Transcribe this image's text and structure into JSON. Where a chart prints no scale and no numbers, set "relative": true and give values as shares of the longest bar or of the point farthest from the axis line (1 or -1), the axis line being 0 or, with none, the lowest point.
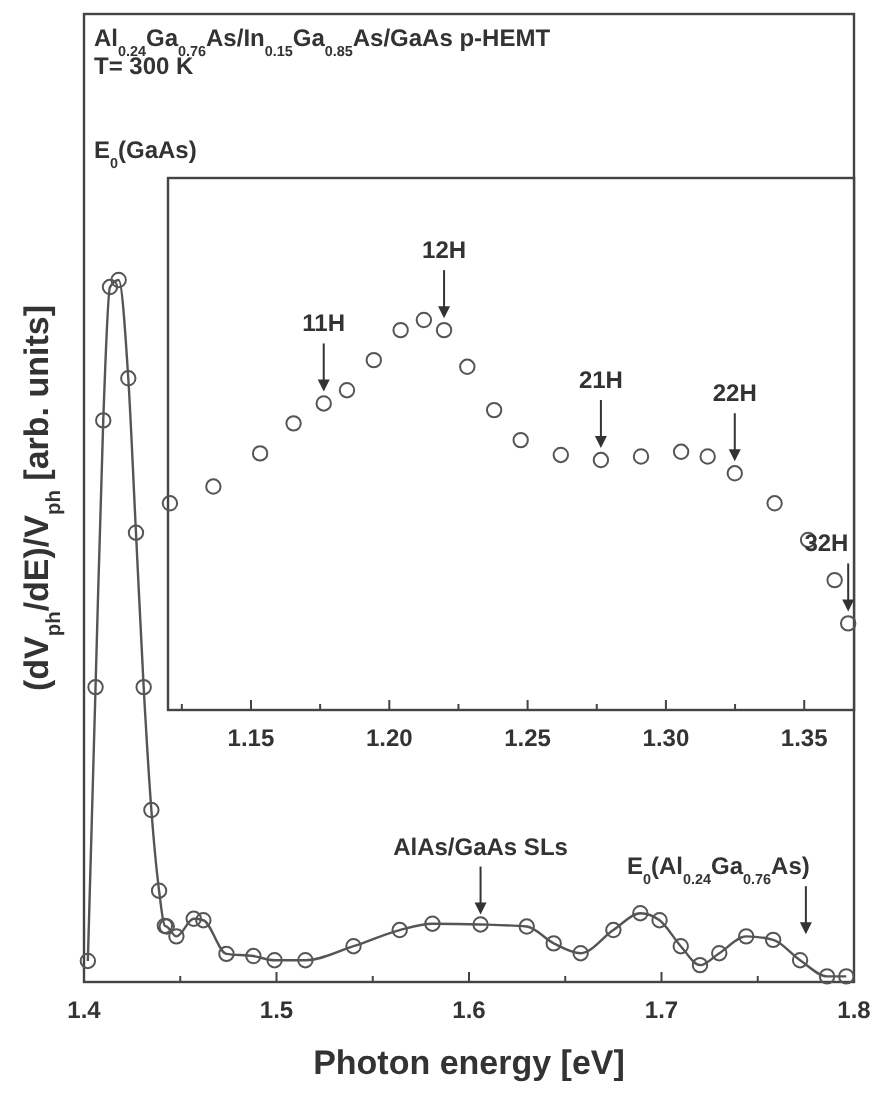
{
  "chart_data": [
    {
      "type": "line",
      "title": "Al$_{0.24}$Ga$_{0.76}$As/In$_{0.15}$Ga$_{0.85}$As/GaAs p-HEMT",
      "subtitle": "T= 300 K",
      "xlabel": "Photon energy [eV]",
      "ylabel": "(dV$_{ph}$/dE)/V$_{ph}$ [arb. units]",
      "relative": true,
      "marker": "circle",
      "line_style": "solid",
      "x": [
        1.402,
        1.406,
        1.41,
        1.4135,
        1.418,
        1.423,
        1.427,
        1.431,
        1.435,
        1.439,
        1.442,
        1.443,
        1.448,
        1.457,
        1.462,
        1.474,
        1.488,
        1.499,
        1.515,
        1.54,
        1.564,
        1.581,
        1.606,
        1.63,
        1.644,
        1.658,
        1.675,
        1.689,
        1.699,
        1.71,
        1.72,
        1.73,
        1.744,
        1.758,
        1.772,
        1.786,
        1.796
      ],
      "values": [
        0.03,
        0.42,
        0.8,
        0.99,
        1.0,
        0.86,
        0.64,
        0.42,
        0.245,
        0.13,
        0.08,
        0.079,
        0.065,
        0.09,
        0.088,
        0.04,
        0.037,
        0.031,
        0.031,
        0.051,
        0.074,
        0.083,
        0.082,
        0.079,
        0.055,
        0.041,
        0.074,
        0.098,
        0.088,
        0.051,
        0.024,
        0.041,
        0.065,
        0.06,
        0.031,
        0.008,
        0.008
      ],
      "color": "#555555",
      "xlim": [
        1.4,
        1.8
      ],
      "xticks": [
        1.4,
        {
          "value": 1.45,
          "label": null
        },
        1.5,
        {
          "value": 1.55,
          "label": null
        },
        1.6,
        {
          "value": 1.65,
          "label": null
        },
        1.7,
        {
          "value": 1.75,
          "label": null
        },
        1.8
      ],
      "annotations": [
        "E$_{0}$(GaAs)",
        {
          "text": "AlAs/GaAs SLs",
          "x": 1.606,
          "y": 0.079
        },
        {
          "text": "E$_{0}$(Al$_{0.24}$Ga$_{0.76}$As)",
          "x": 1.775,
          "y": 0.051
        }
      ]
    },
    {
      "type": "scatter",
      "relative": true,
      "marker": "circle",
      "color": "#555555",
      "x": [
        1.1207,
        1.1364,
        1.1533,
        1.1654,
        1.1763,
        1.1847,
        1.1944,
        1.2041,
        1.2125,
        1.2198,
        1.2282,
        1.2379,
        1.2475,
        1.262,
        1.2765,
        1.291,
        1.3055,
        1.3151,
        1.3249,
        1.3393,
        1.3514,
        1.361,
        1.3659
      ],
      "values": [
        0.53,
        0.573,
        0.658,
        0.735,
        0.786,
        0.82,
        0.897,
        0.974,
        1.0,
        0.974,
        0.88,
        0.769,
        0.692,
        0.654,
        0.641,
        0.65,
        0.662,
        0.65,
        0.607,
        0.53,
        0.436,
        0.333,
        0.222
      ],
      "xlim": [
        1.12,
        1.368
      ],
      "xticks": [
        {
          "value": 1.125,
          "label": null
        },
        {
          "value": 1.15,
          "label": "1.15"
        },
        {
          "value": 1.175,
          "label": null
        },
        {
          "value": 1.2,
          "label": "1.20"
        },
        {
          "value": 1.225,
          "label": null
        },
        {
          "value": 1.25,
          "label": "1.25"
        },
        {
          "value": 1.275,
          "label": null
        },
        {
          "value": 1.3,
          "label": "1.30"
        },
        {
          "value": 1.325,
          "label": null
        },
        {
          "value": 1.35,
          "label": "1.35"
        }
      ],
      "annotations": [
        {
          "text": "11H",
          "x": 1.1763,
          "y": 0.786
        },
        {
          "text": "12H",
          "x": 1.2198,
          "y": 0.974
        },
        {
          "text": "21H",
          "x": 1.2765,
          "y": 0.641
        },
        {
          "text": "22H",
          "x": 1.3249,
          "y": 0.607
        },
        {
          "text": "32H",
          "x": 1.3659,
          "y": 0.222
        }
      ]
    }
  ]
}
